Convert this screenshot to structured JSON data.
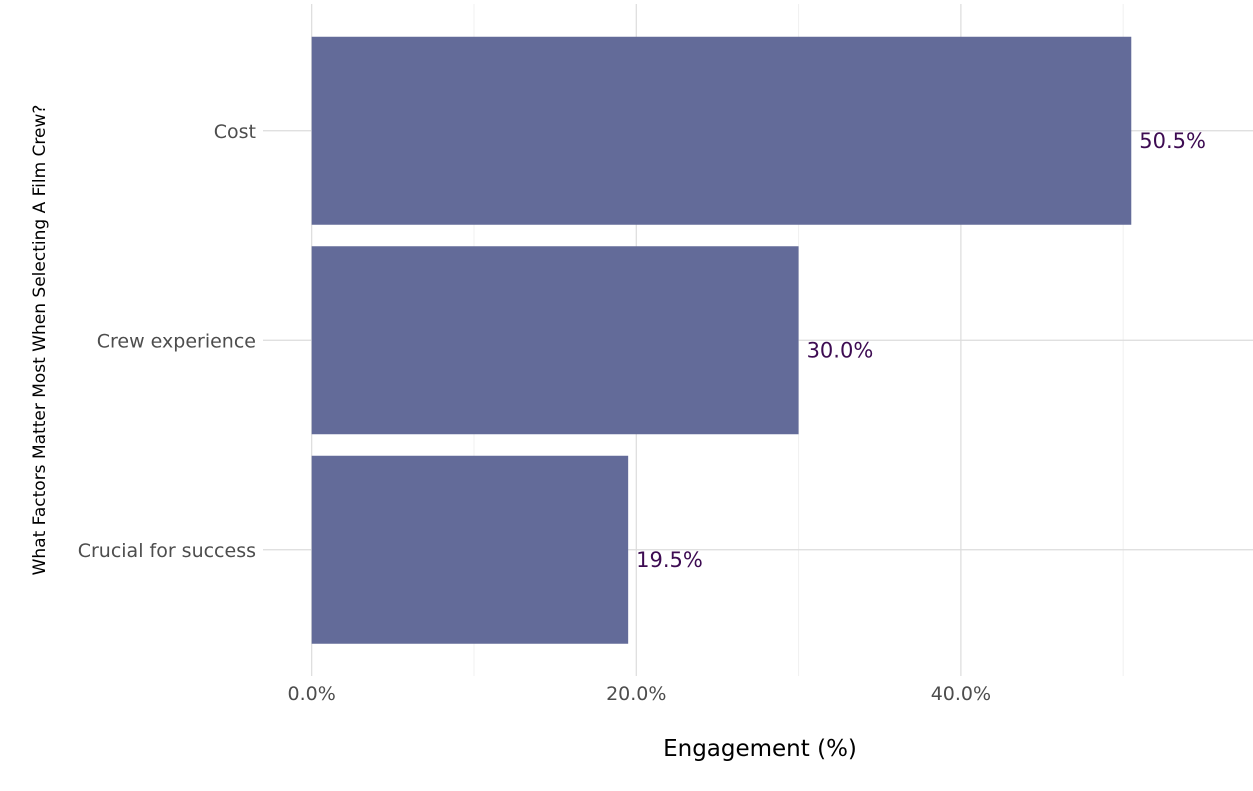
{
  "chart_data": {
    "type": "bar",
    "orientation": "horizontal",
    "title": "",
    "xlabel": "Engagement (%)",
    "ylabel": "What Factors Matter Most When Selecting A Film Crew?",
    "categories": [
      "Cost",
      "Crew experience",
      "Crucial for success"
    ],
    "values": [
      50.5,
      30.0,
      19.5
    ],
    "data_labels": [
      "50.5%",
      "30.0%",
      "19.5%"
    ],
    "xlim": [
      -3,
      58
    ],
    "xticks": [
      0,
      20,
      40
    ],
    "xtick_labels": [
      "0.0%",
      "20.0%",
      "40.0%"
    ],
    "grid": true,
    "legend": "none",
    "colors": {
      "bar": "#636b99",
      "data_label": "#3d0b52"
    }
  }
}
